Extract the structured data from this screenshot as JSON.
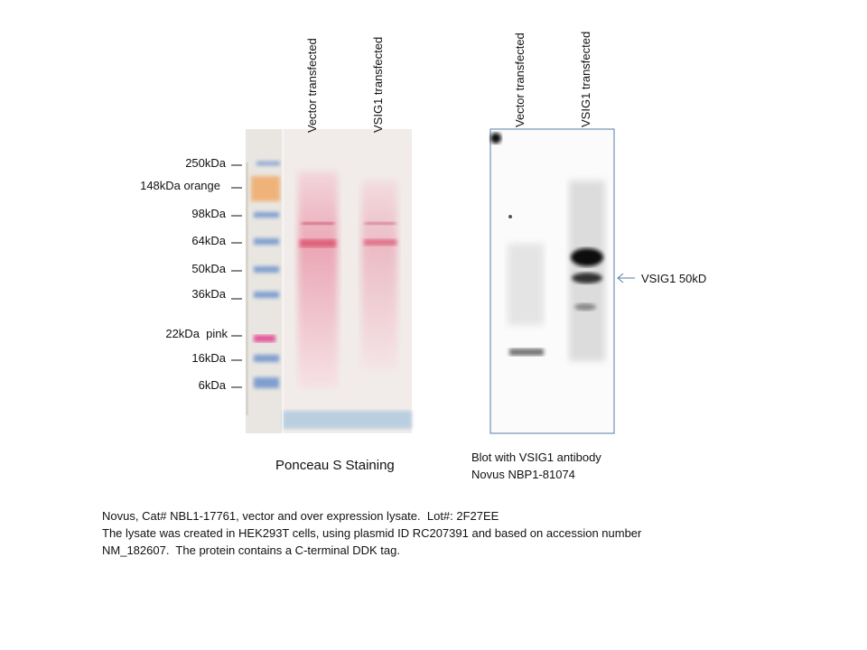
{
  "ponceau": {
    "lane_labels": [
      "Vector transfected",
      "VSIG1 transfected"
    ],
    "markers": [
      "250kDa",
      "148kDa orange",
      "98kDa",
      "64kDa",
      "50kDa",
      "36kDa",
      "22kDa  pink",
      "16kDa",
      "6kDa"
    ],
    "caption": "Ponceau S Staining"
  },
  "blot": {
    "lane_labels": [
      "Vector transfected",
      "VSIG1 transfected"
    ],
    "band_label": "VSIG1 50kD",
    "caption": [
      "Blot with VSIG1 antibody",
      "Novus NBP1-81074"
    ]
  },
  "notes": [
    "Novus, Cat# NBL1-17761, vector and over expression lysate.  Lot#: 2F27EE",
    "The lysate was created in HEK293T cells, using plasmid ID RC207391 and based on accession number",
    "NM_182607.  The protein contains a C-terminal DDK tag."
  ]
}
